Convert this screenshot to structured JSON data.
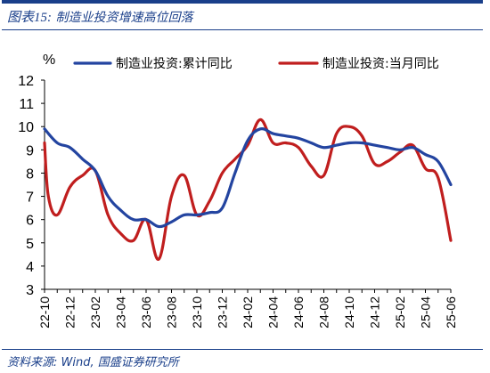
{
  "figure": {
    "label": "图表15:",
    "title": "制造业投资增速高位回落",
    "source": "资料来源: Wind, 国盛证券研究所"
  },
  "chart_data": {
    "type": "line",
    "unit": "%",
    "ylim": [
      3,
      12
    ],
    "yticks": [
      3,
      4,
      5,
      6,
      7,
      8,
      9,
      10,
      11,
      12
    ],
    "xlim": [
      "22-10",
      "25-06"
    ],
    "xticks": [
      "22-10",
      "22-12",
      "23-02",
      "23-04",
      "23-06",
      "23-08",
      "23-10",
      "23-12",
      "24-02",
      "24-04",
      "24-06",
      "24-08",
      "24-10",
      "24-12",
      "25-02",
      "25-04",
      "25-06"
    ],
    "grid": false,
    "legend_position": "top",
    "series": [
      {
        "name": "制造业投资:累计同比",
        "color": "#2344a0",
        "points": [
          {
            "x": "22-10",
            "y": 9.9
          },
          {
            "x": "22-11",
            "y": 9.3
          },
          {
            "x": "22-12",
            "y": 9.1
          },
          {
            "x": "23-01",
            "y": 8.6
          },
          {
            "x": "23-02",
            "y": 8.1
          },
          {
            "x": "23-03",
            "y": 7.0
          },
          {
            "x": "23-04",
            "y": 6.4
          },
          {
            "x": "23-05",
            "y": 6.0
          },
          {
            "x": "23-06",
            "y": 6.0
          },
          {
            "x": "23-07",
            "y": 5.7
          },
          {
            "x": "23-08",
            "y": 5.9
          },
          {
            "x": "23-09",
            "y": 6.2
          },
          {
            "x": "23-10",
            "y": 6.2
          },
          {
            "x": "23-11",
            "y": 6.3
          },
          {
            "x": "23-12",
            "y": 6.5
          },
          {
            "x": "24-01",
            "y": 8.0
          },
          {
            "x": "24-02",
            "y": 9.4
          },
          {
            "x": "24-03",
            "y": 9.9
          },
          {
            "x": "24-04",
            "y": 9.7
          },
          {
            "x": "24-05",
            "y": 9.6
          },
          {
            "x": "24-06",
            "y": 9.5
          },
          {
            "x": "24-07",
            "y": 9.3
          },
          {
            "x": "24-08",
            "y": 9.1
          },
          {
            "x": "24-09",
            "y": 9.2
          },
          {
            "x": "24-10",
            "y": 9.3
          },
          {
            "x": "24-11",
            "y": 9.3
          },
          {
            "x": "24-12",
            "y": 9.2
          },
          {
            "x": "25-01",
            "y": 9.1
          },
          {
            "x": "25-02",
            "y": 9.0
          },
          {
            "x": "25-03",
            "y": 9.1
          },
          {
            "x": "25-04",
            "y": 8.8
          },
          {
            "x": "25-05",
            "y": 8.5
          },
          {
            "x": "25-06",
            "y": 7.5
          }
        ]
      },
      {
        "name": "制造业投资:当月同比",
        "color": "#c01e1e",
        "points": [
          {
            "x": "22-10",
            "y": 9.3
          },
          {
            "x": "22-10.3",
            "y": 7.0
          },
          {
            "x": "22-11",
            "y": 6.2
          },
          {
            "x": "22-12",
            "y": 7.4
          },
          {
            "x": "23-01",
            "y": 7.9
          },
          {
            "x": "23-02",
            "y": 8.1
          },
          {
            "x": "23-03",
            "y": 6.2
          },
          {
            "x": "23-04",
            "y": 5.4
          },
          {
            "x": "23-05",
            "y": 5.1
          },
          {
            "x": "23-06",
            "y": 6.0
          },
          {
            "x": "23-07",
            "y": 4.3
          },
          {
            "x": "23-08",
            "y": 7.0
          },
          {
            "x": "23-09",
            "y": 7.9
          },
          {
            "x": "23-10",
            "y": 6.2
          },
          {
            "x": "23-11",
            "y": 6.8
          },
          {
            "x": "23-12",
            "y": 8.0
          },
          {
            "x": "24-01",
            "y": 8.6
          },
          {
            "x": "24-02",
            "y": 9.2
          },
          {
            "x": "24-03",
            "y": 10.3
          },
          {
            "x": "24-04",
            "y": 9.3
          },
          {
            "x": "24-05",
            "y": 9.3
          },
          {
            "x": "24-06",
            "y": 9.1
          },
          {
            "x": "24-07",
            "y": 8.3
          },
          {
            "x": "24-08",
            "y": 7.9
          },
          {
            "x": "24-09",
            "y": 9.7
          },
          {
            "x": "24-10",
            "y": 10.0
          },
          {
            "x": "24-11",
            "y": 9.6
          },
          {
            "x": "24-12",
            "y": 8.4
          },
          {
            "x": "25-01",
            "y": 8.5
          },
          {
            "x": "25-02",
            "y": 8.9
          },
          {
            "x": "25-03",
            "y": 9.2
          },
          {
            "x": "25-04",
            "y": 8.2
          },
          {
            "x": "25-05",
            "y": 7.8
          },
          {
            "x": "25-06",
            "y": 5.1
          }
        ]
      }
    ]
  }
}
